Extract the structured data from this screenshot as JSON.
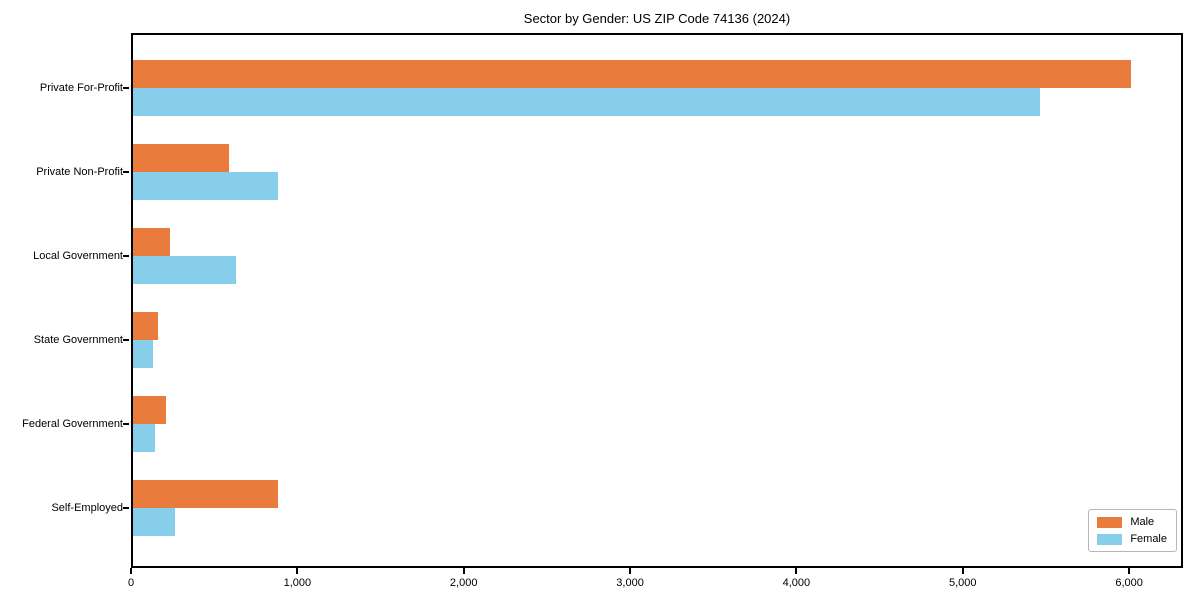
{
  "chart_data": {
    "type": "bar",
    "orientation": "horizontal",
    "title": "Sector by Gender: US ZIP Code 74136 (2024)",
    "categories": [
      "Private For-Profit",
      "Private Non-Profit",
      "Local Government",
      "State Government",
      "Federal Government",
      "Self-Employed"
    ],
    "series": [
      {
        "name": "Male",
        "color": "#e97c3c",
        "values": [
          6000,
          580,
          220,
          150,
          200,
          870
        ]
      },
      {
        "name": "Female",
        "color": "#87ceeb",
        "values": [
          5450,
          870,
          620,
          120,
          135,
          255
        ]
      }
    ],
    "xlabel": "",
    "ylabel": "",
    "xlim": [
      0,
      6300
    ],
    "xticks": [
      0,
      1000,
      2000,
      3000,
      4000,
      5000,
      6000
    ],
    "xtick_labels": [
      "0",
      "1,000",
      "2,000",
      "3,000",
      "4,000",
      "5,000",
      "6,000"
    ],
    "grid": false,
    "legend_position": "lower right",
    "frame": true
  }
}
